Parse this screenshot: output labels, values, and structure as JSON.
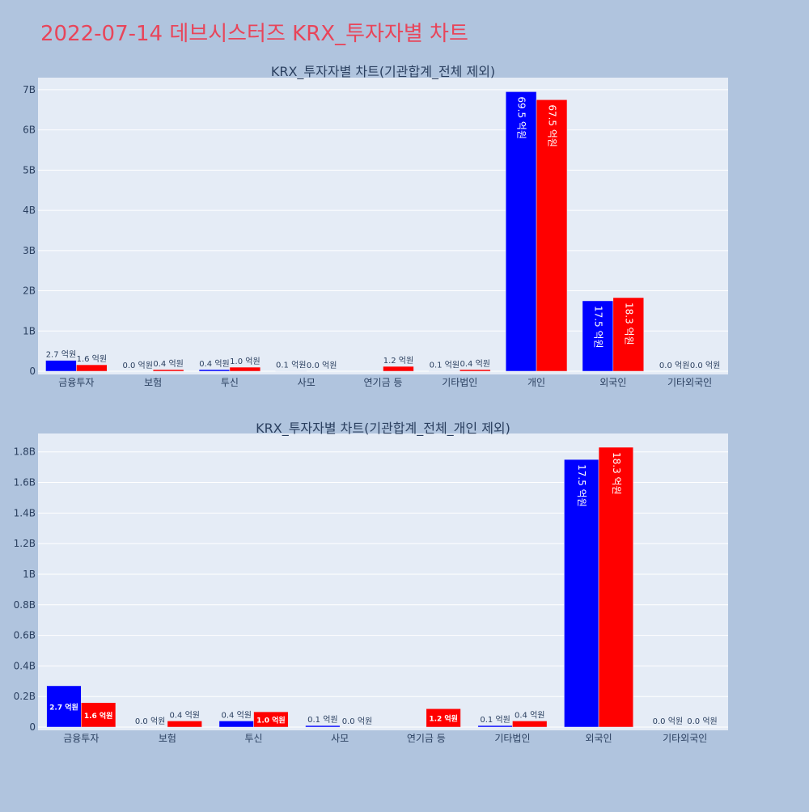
{
  "page": {
    "title": "2022-07-14 데브시스터즈 KRX_투자자별 차트",
    "title_color": "#e8455a",
    "background": "#b0c4de",
    "plot_background": "#e5ecf6"
  },
  "chart_data": [
    {
      "type": "bar",
      "title": "KRX_투자자별 차트(기관합계_전체 제외)",
      "categories": [
        "금융투자",
        "보험",
        "투신",
        "사모",
        "연기금 등",
        "기타법인",
        "개인",
        "외국인",
        "기타외국인"
      ],
      "series": [
        {
          "color": "#0000ff",
          "values": [
            270000000,
            0,
            40000000,
            10000000,
            0,
            10000000,
            6950000000,
            1750000000,
            0
          ],
          "labels": [
            "2.7 억원",
            "0.0 억원",
            "0.4 억원",
            "0.1 억원",
            "",
            "0.1 억원",
            "69.5 억원",
            "17.5 억원",
            "0.0 억원"
          ]
        },
        {
          "color": "#ff0000",
          "values": [
            160000000,
            40000000,
            100000000,
            0,
            120000000,
            40000000,
            6750000000,
            1830000000,
            0
          ],
          "labels": [
            "1.6 억원",
            "0.4 억원",
            "1.0 억원",
            "0.0 억원",
            "1.2 억원",
            "0.4 억원",
            "67.5 억원",
            "18.3 억원",
            "0.0 억원"
          ]
        }
      ],
      "yticks": [
        0,
        1000000000,
        2000000000,
        3000000000,
        4000000000,
        5000000000,
        6000000000,
        7000000000
      ],
      "ytick_labels": [
        "0",
        "1B",
        "2B",
        "3B",
        "4B",
        "5B",
        "6B",
        "7B"
      ],
      "ylim": [
        0,
        7300000000
      ],
      "grid": true
    },
    {
      "type": "bar",
      "title": "KRX_투자자별 차트(기관합계_전체_개인 제외)",
      "categories": [
        "금융투자",
        "보험",
        "투신",
        "사모",
        "연기금 등",
        "기타법인",
        "외국인",
        "기타외국인"
      ],
      "series": [
        {
          "color": "#0000ff",
          "values": [
            270000000,
            0,
            40000000,
            10000000,
            0,
            10000000,
            1750000000,
            0
          ],
          "labels": [
            "2.7 억원",
            "0.0 억원",
            "0.4 억원",
            "0.1 억원",
            "",
            "0.1 억원",
            "17.5 억원",
            "0.0 억원"
          ]
        },
        {
          "color": "#ff0000",
          "values": [
            160000000,
            40000000,
            100000000,
            0,
            120000000,
            40000000,
            1830000000,
            0
          ],
          "labels": [
            "1.6 억원",
            "0.4 억원",
            "1.0 억원",
            "0.0 억원",
            "1.2 억원",
            "0.4 억원",
            "18.3 억원",
            "0.0 억원"
          ]
        }
      ],
      "yticks": [
        0,
        200000000,
        400000000,
        600000000,
        800000000,
        1000000000,
        1200000000,
        1400000000,
        1600000000,
        1800000000
      ],
      "ytick_labels": [
        "0",
        "0.2B",
        "0.4B",
        "0.6B",
        "0.8B",
        "1B",
        "1.2B",
        "1.4B",
        "1.6B",
        "1.8B"
      ],
      "ylim": [
        0,
        1920000000
      ],
      "grid": true
    }
  ]
}
